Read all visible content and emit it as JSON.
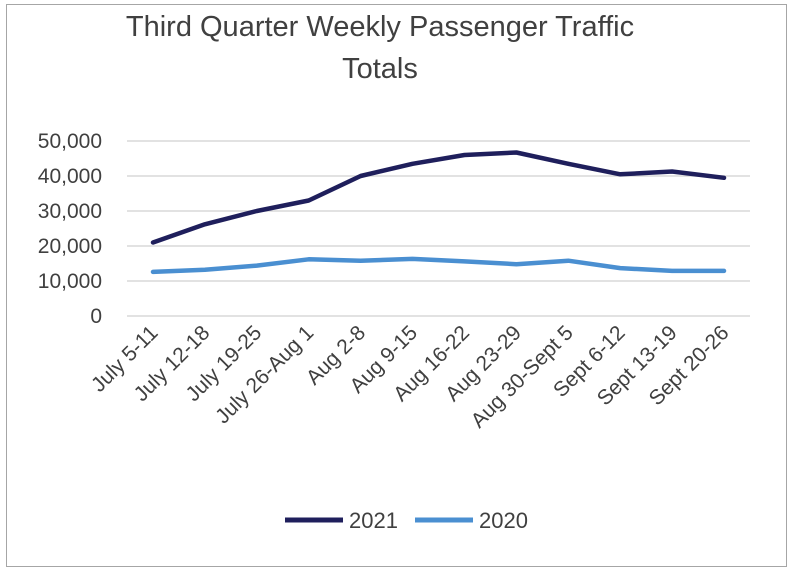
{
  "chart_data": {
    "type": "line",
    "title_lines": [
      "Third Quarter Weekly Passenger Traffic",
      "Totals"
    ],
    "categories": [
      "July 5-11",
      "July 12-18",
      "July 19-25",
      "July 26-Aug 1",
      "Aug 2-8",
      "Aug 9-15",
      "Aug 16-22",
      "Aug 23-29",
      "Aug 30-Sept 5",
      "Sept 6-12",
      "Sept 13-19",
      "Sept 20-26"
    ],
    "ylim": [
      0,
      50000
    ],
    "yticks": [
      "0",
      "10,000",
      "20,000",
      "30,000",
      "40,000",
      "50,000"
    ],
    "grid": true,
    "legend_position": "bottom",
    "series": [
      {
        "name": "2021",
        "color": "#1f1f5c",
        "values": [
          21000,
          26200,
          30000,
          33000,
          40000,
          43500,
          46000,
          46700,
          43500,
          40500,
          41300,
          39500
        ]
      },
      {
        "name": "2020",
        "color": "#4a8fd1",
        "values": [
          12600,
          13200,
          14400,
          16200,
          15800,
          16300,
          15600,
          14800,
          15800,
          13700,
          12900,
          12900
        ]
      }
    ]
  }
}
